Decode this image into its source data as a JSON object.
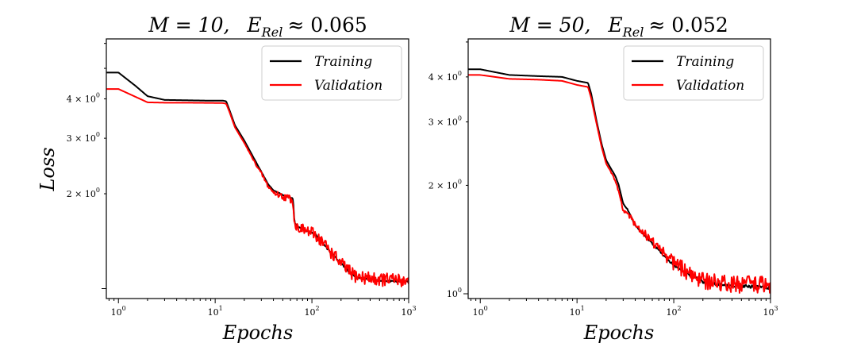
{
  "chart_data": [
    {
      "type": "line",
      "title": "M = 10,    E_Rel ≈ 0.065",
      "title_parts": {
        "m": "M = 10,",
        "e": "E",
        "sub": "Rel",
        "approx": "≈ 0.065"
      },
      "xlabel": "Epochs",
      "ylabel": "Loss",
      "xscale": "log",
      "yscale": "log",
      "xlim": [
        0.75,
        1000
      ],
      "ylim": [
        0.93,
        6.2
      ],
      "x_ticks": [
        {
          "value": 1,
          "label": "10^0"
        },
        {
          "value": 10,
          "label": "10^1"
        },
        {
          "value": 100,
          "label": "10^2"
        },
        {
          "value": 1000,
          "label": "10^3"
        }
      ],
      "y_ticks": [
        {
          "value": 2,
          "label": "2 × 10^0"
        },
        {
          "value": 3,
          "label": "3 × 10^0"
        },
        {
          "value": 4,
          "label": "4 × 10^0"
        }
      ],
      "legend_position": "upper-right",
      "series": [
        {
          "name": "Training",
          "color": "#000000",
          "noise": 0.003,
          "points": [
            [
              0.75,
              4.85
            ],
            [
              1.0,
              4.85
            ],
            [
              1.5,
              4.4
            ],
            [
              2.0,
              4.08
            ],
            [
              3.0,
              3.97
            ],
            [
              5.0,
              3.96
            ],
            [
              8.0,
              3.95
            ],
            [
              12.0,
              3.95
            ],
            [
              13.0,
              3.93
            ],
            [
              14.0,
              3.7
            ],
            [
              16.0,
              3.3
            ],
            [
              20.0,
              2.95
            ],
            [
              25.0,
              2.6
            ],
            [
              30.0,
              2.35
            ],
            [
              35.0,
              2.15
            ],
            [
              40.0,
              2.05
            ],
            [
              50.0,
              1.98
            ],
            [
              60.0,
              1.95
            ],
            [
              64.0,
              1.92
            ],
            [
              66.0,
              1.62
            ],
            [
              70.0,
              1.58
            ],
            [
              90.0,
              1.52
            ],
            [
              110.0,
              1.48
            ],
            [
              150.0,
              1.32
            ],
            [
              200.0,
              1.2
            ],
            [
              250.0,
              1.12
            ],
            [
              300.0,
              1.08
            ],
            [
              500.0,
              1.06
            ],
            [
              1000.0,
              1.05
            ]
          ]
        },
        {
          "name": "Validation",
          "color": "#ff0000",
          "noise": 0.022,
          "points": [
            [
              0.75,
              4.3
            ],
            [
              1.0,
              4.3
            ],
            [
              2.0,
              3.9
            ],
            [
              3.0,
              3.89
            ],
            [
              5.0,
              3.89
            ],
            [
              12.0,
              3.88
            ],
            [
              13.0,
              3.86
            ],
            [
              14.0,
              3.65
            ],
            [
              16.0,
              3.25
            ],
            [
              20.0,
              2.9
            ],
            [
              25.0,
              2.55
            ],
            [
              30.0,
              2.32
            ],
            [
              35.0,
              2.12
            ],
            [
              40.0,
              2.02
            ],
            [
              50.0,
              1.96
            ],
            [
              60.0,
              1.93
            ],
            [
              64.0,
              1.9
            ],
            [
              66.0,
              1.6
            ],
            [
              70.0,
              1.57
            ],
            [
              90.0,
              1.52
            ],
            [
              110.0,
              1.48
            ],
            [
              150.0,
              1.33
            ],
            [
              200.0,
              1.2
            ],
            [
              250.0,
              1.12
            ],
            [
              300.0,
              1.09
            ],
            [
              500.0,
              1.07
            ],
            [
              1000.0,
              1.06
            ]
          ]
        }
      ]
    },
    {
      "type": "line",
      "title": "M = 50,    E_Rel ≈ 0.052",
      "title_parts": {
        "m": "M = 50,",
        "e": "E",
        "sub": "Rel",
        "approx": "≈ 0.052"
      },
      "xlabel": "Epochs",
      "ylabel": "",
      "xscale": "log",
      "yscale": "log",
      "xlim": [
        0.75,
        1000
      ],
      "ylim": [
        0.97,
        5.1
      ],
      "x_ticks": [
        {
          "value": 1,
          "label": "10^0"
        },
        {
          "value": 10,
          "label": "10^1"
        },
        {
          "value": 100,
          "label": "10^2"
        },
        {
          "value": 1000,
          "label": "10^3"
        }
      ],
      "y_ticks": [
        {
          "value": 1,
          "label": "10^0"
        },
        {
          "value": 2,
          "label": "2 × 10^0"
        },
        {
          "value": 3,
          "label": "3 × 10^0"
        },
        {
          "value": 4,
          "label": "4 × 10^0"
        }
      ],
      "legend_position": "upper-right",
      "series": [
        {
          "name": "Training",
          "color": "#000000",
          "noise": 0.004,
          "points": [
            [
              0.75,
              4.2
            ],
            [
              1.0,
              4.2
            ],
            [
              2.0,
              4.05
            ],
            [
              4.0,
              4.02
            ],
            [
              7.0,
              4.0
            ],
            [
              10.0,
              3.9
            ],
            [
              13.0,
              3.85
            ],
            [
              14.0,
              3.6
            ],
            [
              16.0,
              3.0
            ],
            [
              18.0,
              2.6
            ],
            [
              20.0,
              2.35
            ],
            [
              23.0,
              2.2
            ],
            [
              25.0,
              2.12
            ],
            [
              27.0,
              2.0
            ],
            [
              30.0,
              1.78
            ],
            [
              33.0,
              1.72
            ],
            [
              40.0,
              1.55
            ],
            [
              50.0,
              1.45
            ],
            [
              70.0,
              1.32
            ],
            [
              100.0,
              1.2
            ],
            [
              150.0,
              1.12
            ],
            [
              200.0,
              1.08
            ],
            [
              300.0,
              1.06
            ],
            [
              500.0,
              1.05
            ],
            [
              1000.0,
              1.04
            ]
          ]
        },
        {
          "name": "Validation",
          "color": "#ff0000",
          "noise": 0.024,
          "points": [
            [
              0.75,
              4.05
            ],
            [
              1.0,
              4.05
            ],
            [
              2.0,
              3.95
            ],
            [
              4.0,
              3.93
            ],
            [
              7.0,
              3.9
            ],
            [
              10.0,
              3.8
            ],
            [
              13.0,
              3.75
            ],
            [
              14.0,
              3.5
            ],
            [
              16.0,
              2.95
            ],
            [
              18.0,
              2.55
            ],
            [
              20.0,
              2.3
            ],
            [
              23.0,
              2.15
            ],
            [
              25.0,
              2.05
            ],
            [
              27.0,
              1.92
            ],
            [
              30.0,
              1.7
            ],
            [
              33.0,
              1.68
            ],
            [
              40.0,
              1.56
            ],
            [
              50.0,
              1.47
            ],
            [
              70.0,
              1.34
            ],
            [
              100.0,
              1.22
            ],
            [
              150.0,
              1.13
            ],
            [
              200.0,
              1.09
            ],
            [
              300.0,
              1.07
            ],
            [
              500.0,
              1.06
            ],
            [
              1000.0,
              1.06
            ]
          ]
        }
      ]
    }
  ]
}
